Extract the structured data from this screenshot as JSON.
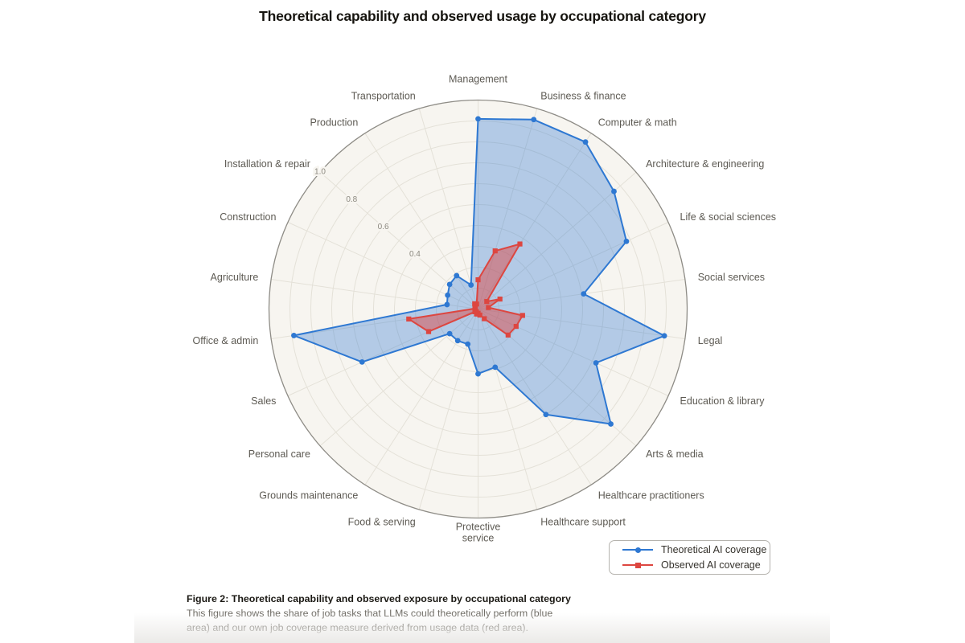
{
  "page": {
    "title": "Theoretical capability and observed usage by occupational category"
  },
  "chart_data": {
    "type": "radar",
    "title": "Theoretical capability and observed usage by occupational category",
    "r_max": 1.0,
    "grid_interval": 0.1,
    "r_ticks": [
      {
        "label": "1.0",
        "value": 1.0
      },
      {
        "label": "0.8",
        "value": 0.8
      },
      {
        "label": "0.6",
        "value": 0.6
      },
      {
        "label": "0.4",
        "value": 0.4
      }
    ],
    "r_tick_axis": "Installation & repair",
    "legend_position": "bottom-right",
    "categories": [
      "Management",
      "Business & finance",
      "Computer & math",
      "Architecture & engineering",
      "Life & social sciences",
      "Social services",
      "Legal",
      "Education & library",
      "Arts & media",
      "Healthcare practitioners",
      "Healthcare support",
      "Protective\nservice",
      "Food & serving",
      "Grounds maintenance",
      "Personal care",
      "Sales",
      "Office & admin",
      "Agriculture",
      "Construction",
      "Installation & repair",
      "Production",
      "Transportation"
    ],
    "series": [
      {
        "name": "Theoretical AI coverage",
        "color": "#2e78d2",
        "fill_opacity": 0.34,
        "marker": "circle",
        "values": [
          0.91,
          0.945,
          0.95,
          0.86,
          0.78,
          0.51,
          0.9,
          0.62,
          0.84,
          0.6,
          0.29,
          0.31,
          0.175,
          0.18,
          0.18,
          0.61,
          0.89,
          0.15,
          0.16,
          0.18,
          0.19,
          0.12
        ]
      },
      {
        "name": "Observed AI coverage",
        "color": "#dd4640",
        "fill_opacity": 0.48,
        "marker": "square",
        "values": [
          0.14,
          0.29,
          0.37,
          0.055,
          0.115,
          0.05,
          0.215,
          0.2,
          0.19,
          0.055,
          0.03,
          0.02,
          0.025,
          0.015,
          0.02,
          0.26,
          0.335,
          0.015,
          0.015,
          0.02,
          0.03,
          0.025
        ]
      }
    ],
    "colors": {
      "plot_background": "#f7f5f0",
      "grid": "#e4e1d8",
      "outline": "#8e8c86",
      "category_label": "#5d5a53",
      "tick_label": "#8b887f"
    }
  },
  "legend": {
    "items": [
      {
        "label": "Theoretical AI coverage",
        "color": "#2e78d2",
        "marker": "circle"
      },
      {
        "label": "Observed AI coverage",
        "color": "#dd4640",
        "marker": "square"
      }
    ]
  },
  "caption": {
    "title_line": "Figure 2: Theoretical capability and observed exposure by occupational category",
    "body_lines": [
      "This figure shows the share of job tasks that LLMs could theoretically perform (blue",
      "area) and our own job coverage measure derived from usage data (red area)."
    ]
  }
}
